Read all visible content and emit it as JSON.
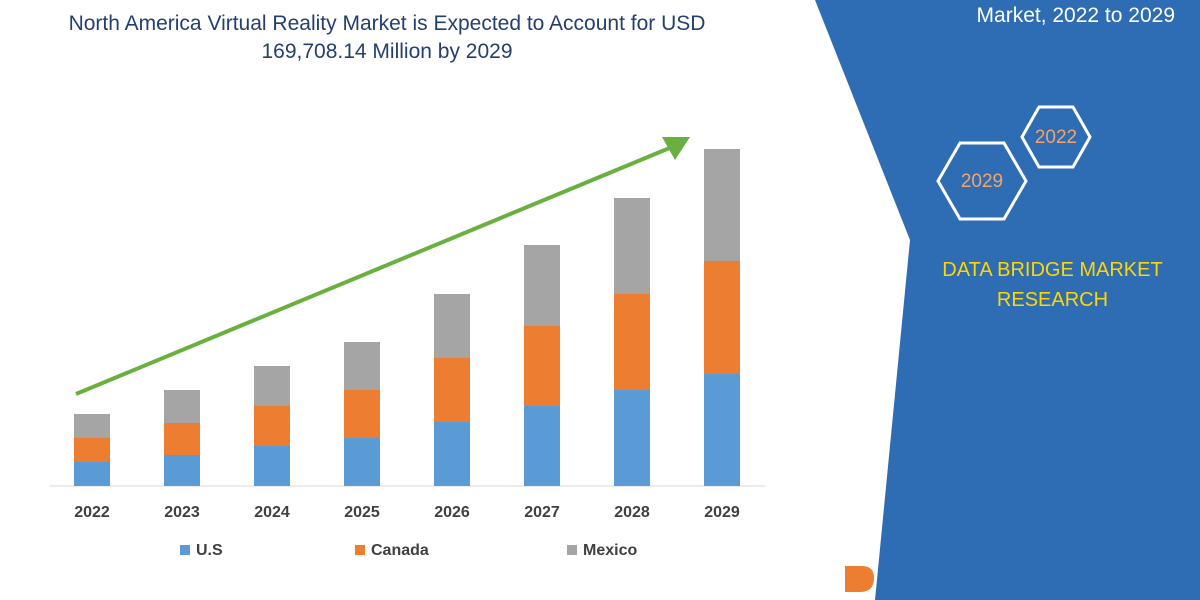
{
  "chart_data": {
    "type": "bar",
    "stacked": true,
    "title": "North America Virtual Reality Market is Expected to Account for USD 169,708.14 Million by 2029",
    "categories": [
      "2022",
      "2023",
      "2024",
      "2025",
      "2026",
      "2027",
      "2028",
      "2029"
    ],
    "series": [
      {
        "name": "U.S",
        "color": "#5b9bd5",
        "values": [
          24,
          31,
          40,
          48,
          64,
          80,
          96,
          112
        ]
      },
      {
        "name": "Canada",
        "color": "#ed7d31",
        "values": [
          24,
          32,
          40,
          48,
          64,
          80,
          96,
          113
        ]
      },
      {
        "name": "Mexico",
        "color": "#a5a5a5",
        "values": [
          24,
          33,
          40,
          48,
          64,
          81,
          96,
          112
        ]
      }
    ]
  },
  "side_heading": "Market, 2022 to 2029",
  "hexagons": [
    "2022",
    "2029"
  ],
  "brand": "DATA BRIDGE MARKET RESEARCH",
  "logo_text": "DATA BRIDGE"
}
